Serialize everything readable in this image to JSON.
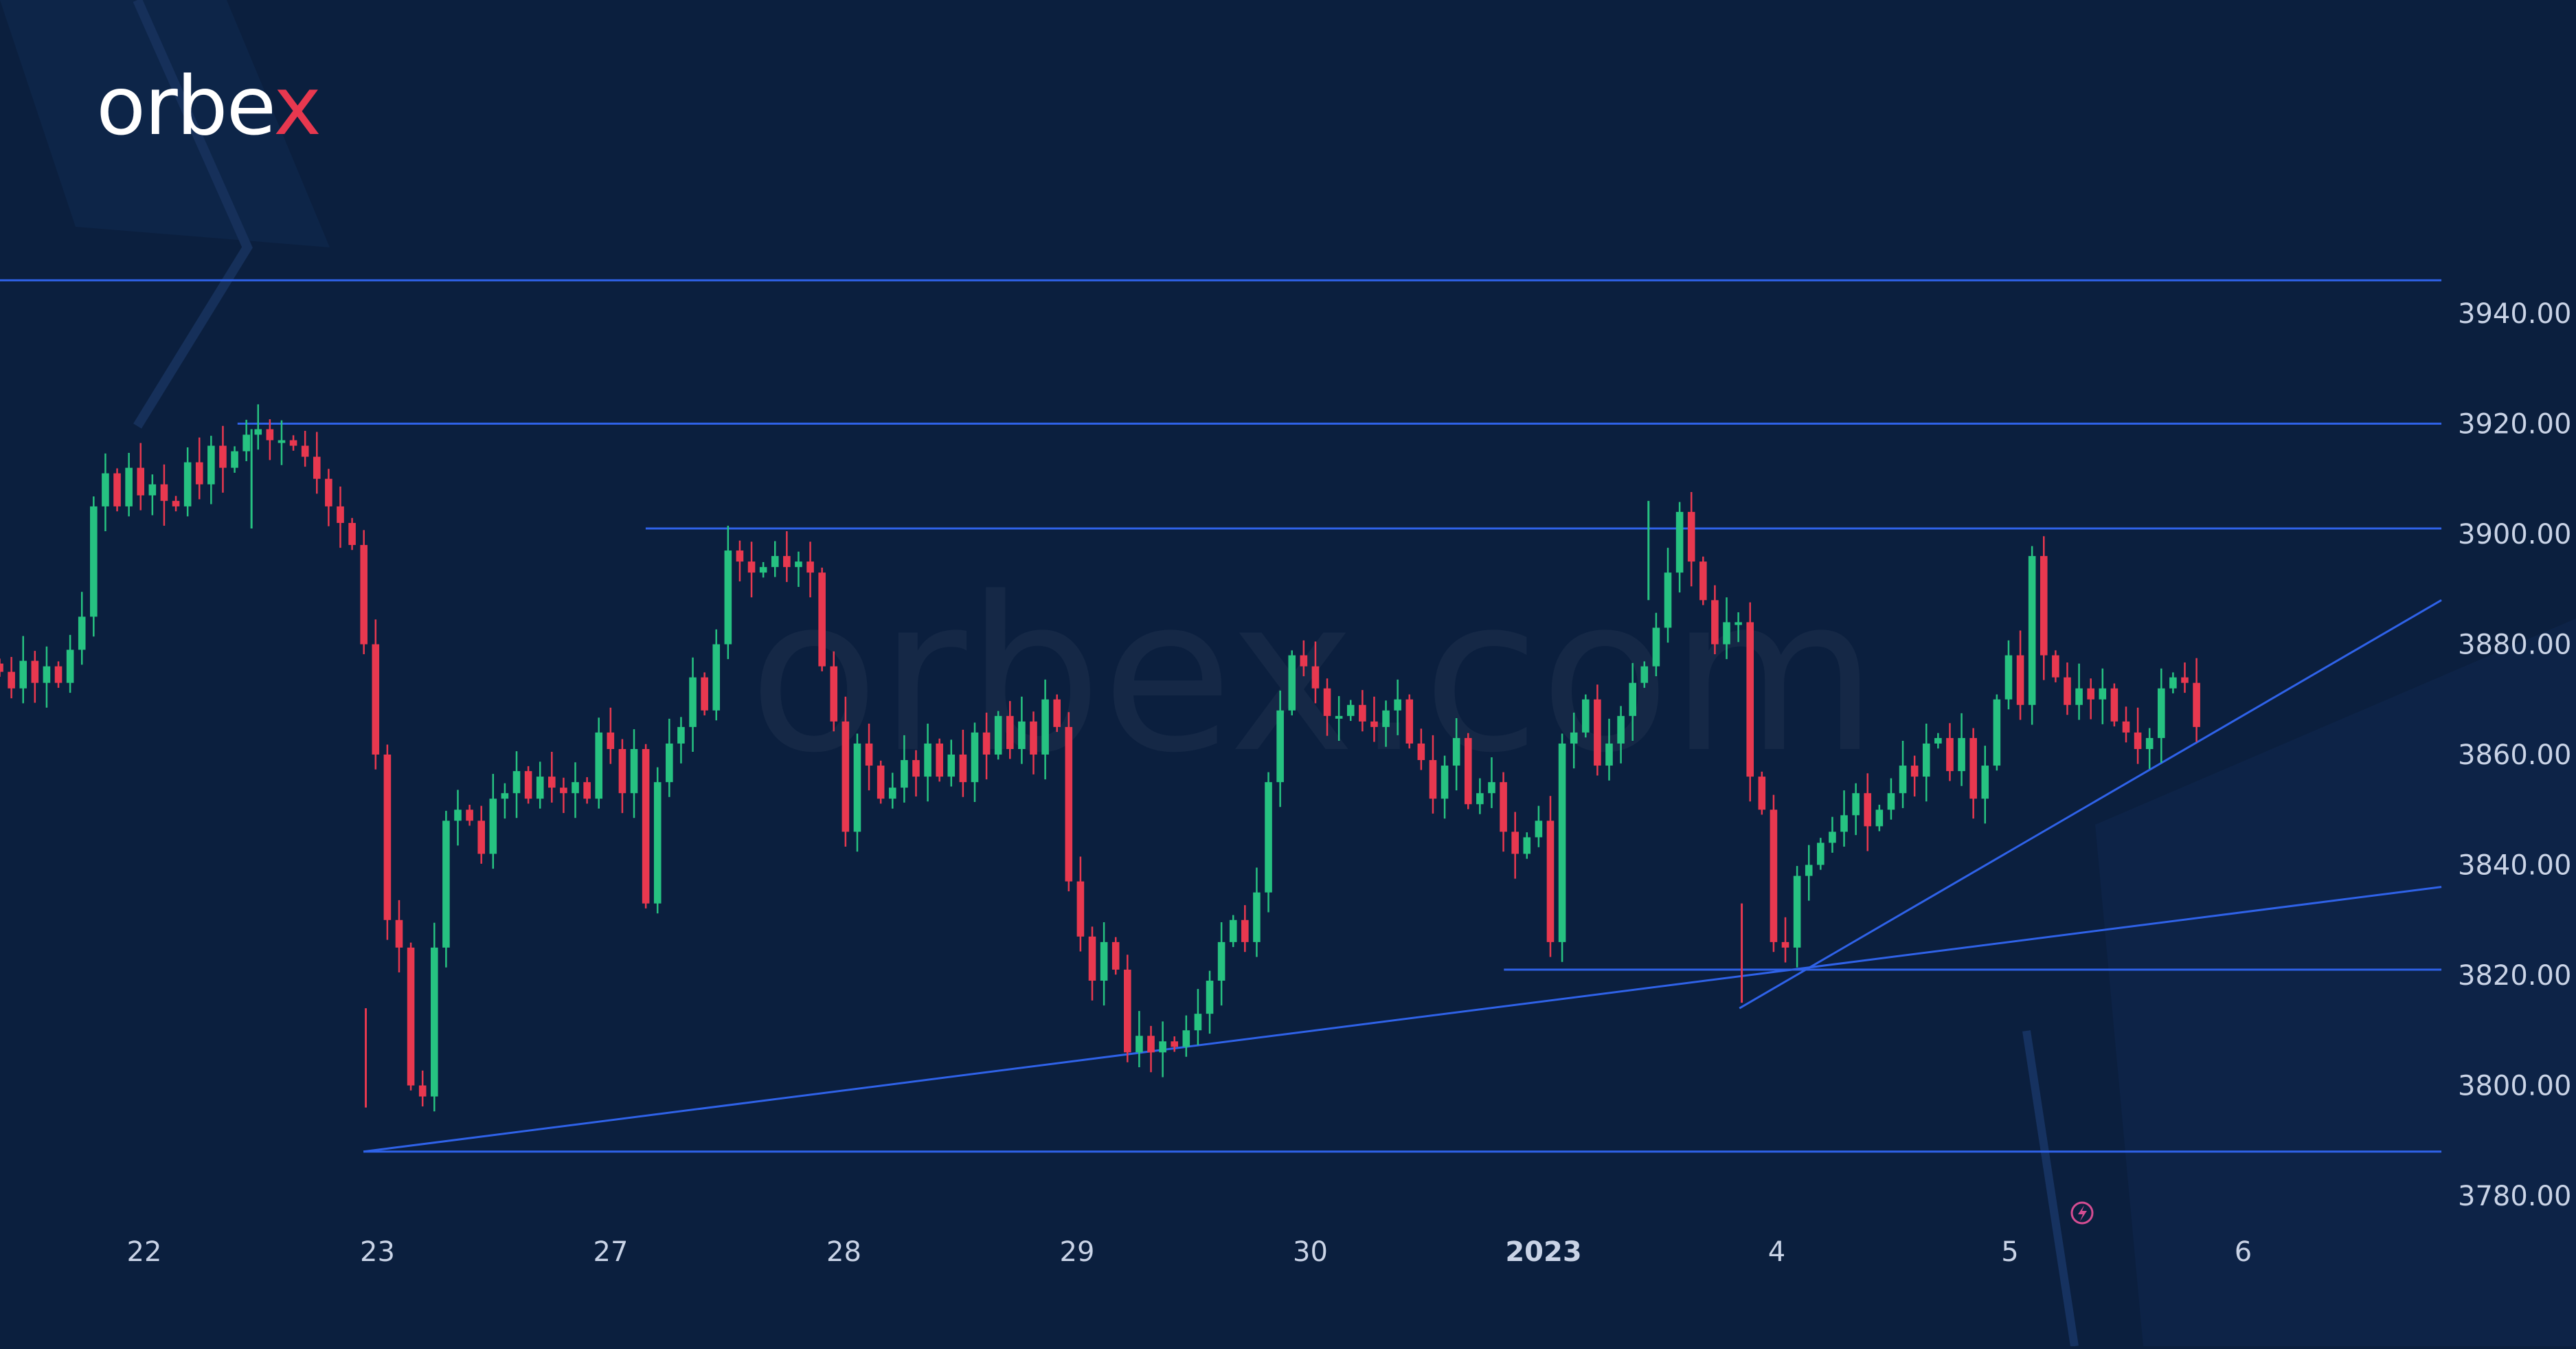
{
  "brand": {
    "logo_text": "orbe",
    "logo_accent": "x",
    "watermark": "orbex.com"
  },
  "colors": {
    "background": "#0b1f3e",
    "up": "#26c281",
    "down": "#e8384f",
    "trendline": "#2f62e8",
    "axis_text": "#c9d3e6"
  },
  "chart_data": {
    "type": "candlestick",
    "title": "",
    "xlabel": "",
    "ylabel": "",
    "ylim": [
      3770,
      3950
    ],
    "y_ticks": [
      "3940.00",
      "3920.00",
      "3900.00",
      "3880.00",
      "3860.00",
      "3840.00",
      "3820.00",
      "3800.00",
      "3780.00"
    ],
    "y_tick_values": [
      3940,
      3920,
      3900,
      3880,
      3860,
      3840,
      3820,
      3800,
      3780
    ],
    "x_ticks": [
      "22",
      "23",
      "27",
      "28",
      "29",
      "30",
      "2023",
      "4",
      "5",
      "6"
    ],
    "x_tick_sessions": [
      0,
      1,
      2,
      3,
      4,
      5,
      6,
      7,
      8,
      9
    ],
    "x_tick_bold": [
      false,
      false,
      false,
      false,
      false,
      false,
      true,
      false,
      false,
      false
    ],
    "x_range_sessions": [
      -0.62,
      9.85
    ],
    "grid": false,
    "closes": [
      3875,
      3872,
      3877,
      3873,
      3876,
      3873,
      3879,
      3885,
      3905,
      3911,
      3905,
      3912,
      3907,
      3909,
      3906,
      3905,
      3913,
      3909,
      3916,
      3912,
      3915,
      3918,
      3919,
      3917,
      3917,
      3916,
      3914,
      3910,
      3905,
      3902,
      3898,
      3880,
      3860,
      3830,
      3825,
      3800,
      3798,
      3825,
      3848,
      3850,
      3848,
      3842,
      3852,
      3853,
      3857,
      3852,
      3856,
      3854,
      3853,
      3855,
      3852,
      3864,
      3861,
      3853,
      3861,
      3833,
      3855,
      3862,
      3865,
      3874,
      3868,
      3880,
      3897,
      3895,
      3893,
      3894,
      3896,
      3894,
      3895,
      3893,
      3876,
      3866,
      3846,
      3862,
      3858,
      3852,
      3854,
      3859,
      3856,
      3862,
      3856,
      3860,
      3855,
      3864,
      3860,
      3867,
      3861,
      3866,
      3860,
      3870,
      3865,
      3837,
      3827,
      3819,
      3826,
      3821,
      3806,
      3809,
      3806,
      3808,
      3807,
      3810,
      3813,
      3819,
      3826,
      3830,
      3826,
      3835,
      3855,
      3868,
      3878,
      3876,
      3872,
      3867,
      3867,
      3869,
      3866,
      3865,
      3868,
      3870,
      3862,
      3859,
      3852,
      3858,
      3863,
      3851,
      3853,
      3855,
      3846,
      3842,
      3845,
      3848,
      3826,
      3862,
      3864,
      3870,
      3858,
      3862,
      3867,
      3873,
      3876,
      3883,
      3893,
      3904,
      3895,
      3888,
      3880,
      3884,
      3884,
      3856,
      3850,
      3826,
      3825,
      3838,
      3840,
      3844,
      3846,
      3849,
      3853,
      3847,
      3850,
      3853,
      3858,
      3856,
      3862,
      3863,
      3857,
      3863,
      3852,
      3858,
      3870,
      3878,
      3869,
      3896,
      3878,
      3874,
      3869,
      3872,
      3870,
      3872,
      3866,
      3864,
      3861,
      3863,
      3872,
      3874,
      3873,
      3865
    ],
    "extremes": [
      {
        "label": "high",
        "session": 0.46,
        "value": 3919
      },
      {
        "label": "low",
        "session": 0.95,
        "value": 3796
      },
      {
        "label": "high",
        "session": 6.45,
        "value": 3906
      },
      {
        "label": "low",
        "session": 6.85,
        "value": 3815
      }
    ],
    "lines": [
      {
        "kind": "horizontal",
        "x1": -0.62,
        "x2": 9.85,
        "y1": 3946,
        "y2": 3946
      },
      {
        "kind": "horizontal",
        "x1": 0.4,
        "x2": 9.85,
        "y1": 3920,
        "y2": 3920
      },
      {
        "kind": "horizontal",
        "x1": 2.15,
        "x2": 9.85,
        "y1": 3901,
        "y2": 3901
      },
      {
        "kind": "horizontal",
        "x1": 5.83,
        "x2": 9.85,
        "y1": 3821,
        "y2": 3821
      },
      {
        "kind": "horizontal",
        "x1": 0.94,
        "x2": 9.85,
        "y1": 3788,
        "y2": 3788
      },
      {
        "kind": "trend",
        "x1": 0.94,
        "x2": 9.85,
        "y1": 3788,
        "y2": 3836
      },
      {
        "kind": "trend",
        "x1": 6.84,
        "x2": 9.85,
        "y1": 3814,
        "y2": 3888
      }
    ]
  }
}
